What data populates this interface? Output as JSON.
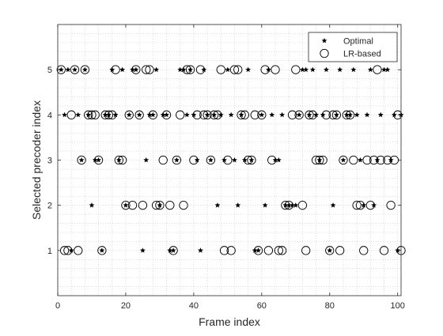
{
  "chart_data": {
    "type": "scatter",
    "title": "",
    "xlabel": "Frame index",
    "ylabel": "Selected precoder index",
    "xlim": [
      0,
      101
    ],
    "ylim": [
      0,
      6
    ],
    "xticks": [
      0,
      20,
      40,
      60,
      80,
      100
    ],
    "xtick_labels": [
      "0",
      "20",
      "40",
      "60",
      "80",
      "100"
    ],
    "yticks": [
      1,
      2,
      3,
      4,
      5
    ],
    "ytick_labels": [
      "1",
      "2",
      "3",
      "4",
      "5"
    ],
    "grid": "minor dotted",
    "legend_position": "top-right",
    "series": [
      {
        "name": "Optimal",
        "marker": "filled-star",
        "color": "#000000",
        "x": [
          1,
          2,
          3,
          4,
          5,
          6,
          7,
          8,
          9,
          10,
          11,
          12,
          13,
          14,
          15,
          16,
          17,
          18,
          19,
          20,
          21,
          22,
          23,
          24,
          25,
          26,
          27,
          28,
          29,
          30,
          31,
          32,
          33,
          34,
          35,
          36,
          37,
          38,
          39,
          40,
          41,
          42,
          43,
          44,
          45,
          46,
          47,
          48,
          49,
          50,
          51,
          52,
          53,
          54,
          55,
          56,
          57,
          58,
          59,
          60,
          61,
          62,
          63,
          64,
          65,
          66,
          67,
          68,
          69,
          70,
          71,
          72,
          73,
          74,
          75,
          76,
          77,
          78,
          79,
          80,
          81,
          82,
          83,
          84,
          85,
          86,
          87,
          88,
          89,
          90,
          91,
          92,
          93,
          94,
          95,
          96,
          97,
          98,
          99,
          100,
          101
        ],
        "y": [
          5,
          4,
          5,
          1,
          5,
          4,
          3,
          5,
          4,
          2,
          3,
          3,
          1,
          4,
          4,
          5,
          4,
          3,
          5,
          2,
          4,
          5,
          5,
          4,
          1,
          3,
          4,
          4,
          5,
          2,
          4,
          4,
          1,
          1,
          3,
          5,
          5,
          4,
          5,
          4,
          3,
          1,
          5,
          4,
          3,
          4,
          2,
          4,
          3,
          5,
          4,
          3,
          2,
          4,
          3,
          5,
          3,
          1,
          1,
          4,
          2,
          5,
          4,
          3,
          3,
          4,
          2,
          2,
          2,
          2,
          4,
          5,
          5,
          4,
          5,
          4,
          3,
          4,
          5,
          1,
          2,
          4,
          5,
          3,
          4,
          4,
          5,
          4,
          3,
          2,
          4,
          5,
          2,
          3,
          4,
          5,
          5,
          3,
          4,
          1,
          4
        ]
      },
      {
        "name": "LR-based",
        "marker": "open-circle",
        "color": "#000000",
        "x": [
          1,
          2,
          3,
          4,
          5,
          6,
          7,
          8,
          9,
          10,
          11,
          12,
          13,
          14,
          15,
          16,
          17,
          18,
          19,
          20,
          21,
          22,
          23,
          24,
          25,
          26,
          27,
          28,
          29,
          30,
          31,
          32,
          33,
          34,
          35,
          36,
          37,
          38,
          39,
          40,
          41,
          42,
          43,
          44,
          45,
          46,
          47,
          48,
          49,
          50,
          51,
          52,
          53,
          54,
          55,
          56,
          57,
          58,
          59,
          60,
          61,
          62,
          63,
          64,
          65,
          66,
          67,
          68,
          69,
          70,
          71,
          72,
          73,
          74,
          75,
          76,
          77,
          78,
          79,
          80,
          81,
          82,
          83,
          84,
          85,
          86,
          87,
          88,
          89,
          90,
          91,
          92,
          93,
          94,
          95,
          96,
          97,
          98,
          99,
          100,
          101
        ],
        "y": [
          5,
          1,
          1,
          4,
          5,
          1,
          3,
          5,
          4,
          4,
          4,
          3,
          1,
          4,
          4,
          4,
          5,
          3,
          3,
          2,
          4,
          2,
          5,
          4,
          2,
          5,
          5,
          4,
          2,
          2,
          3,
          4,
          2,
          1,
          3,
          4,
          2,
          5,
          5,
          3,
          4,
          5,
          4,
          4,
          3,
          4,
          4,
          5,
          1,
          3,
          1,
          5,
          5,
          4,
          4,
          3,
          3,
          4,
          1,
          4,
          5,
          1,
          3,
          5,
          1,
          1,
          2,
          2,
          4,
          5,
          4,
          2,
          1,
          4,
          4,
          3,
          3,
          3,
          4,
          1,
          4,
          4,
          1,
          3,
          4,
          4,
          3,
          2,
          2,
          1,
          3,
          2,
          3,
          5,
          3,
          1,
          3,
          2,
          3,
          4,
          1
        ]
      }
    ]
  }
}
